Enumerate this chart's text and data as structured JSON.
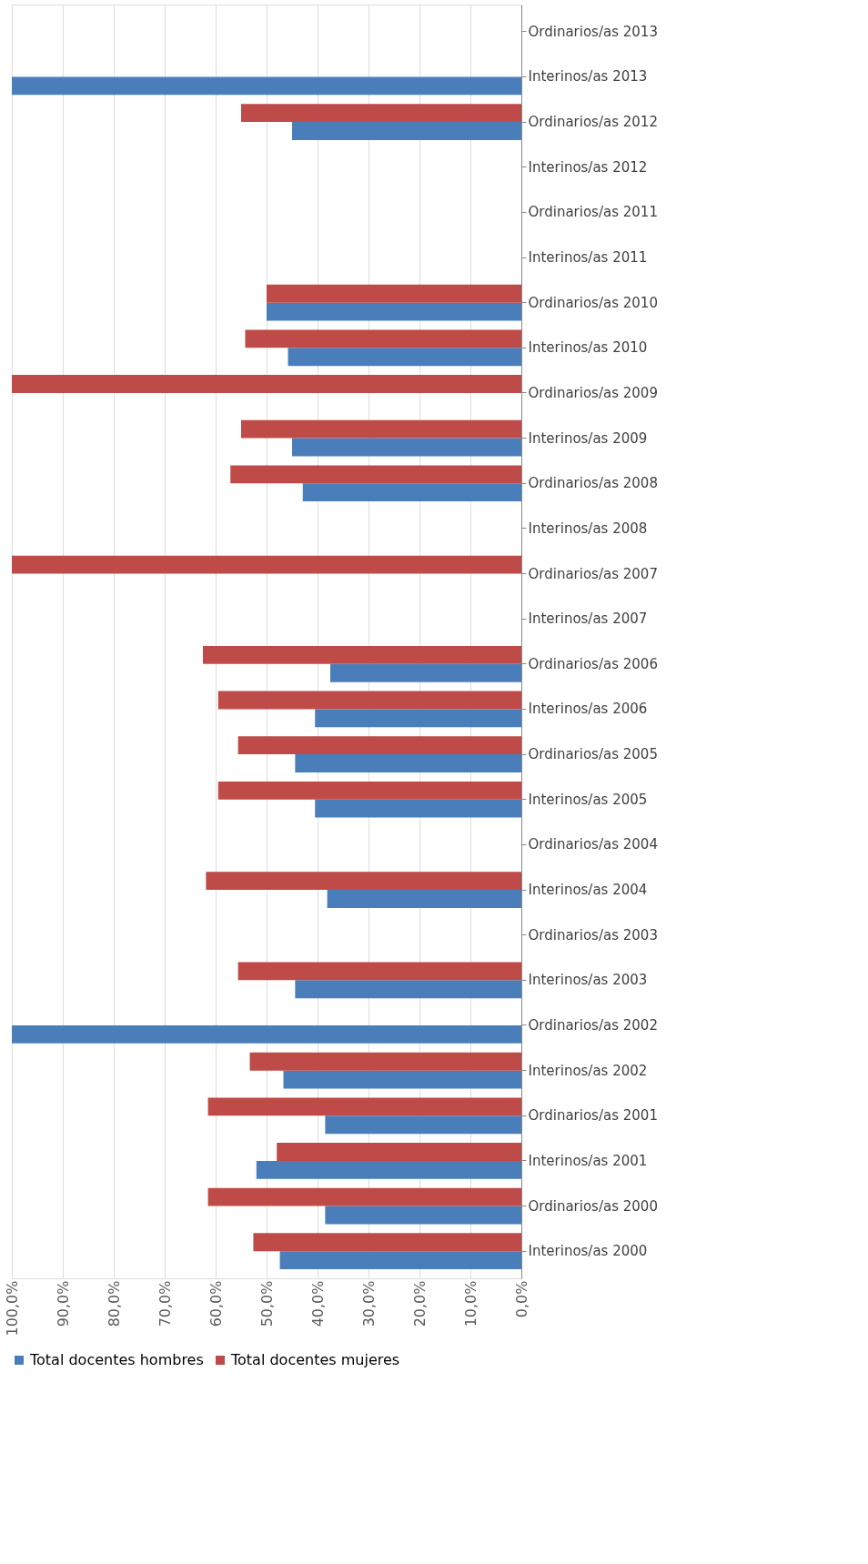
{
  "chart_data": {
    "type": "bar",
    "orientation": "horizontal",
    "categories": [
      "Ordinarios/as 2013",
      "Interinos/as 2013",
      "Ordinarios/as 2012",
      "Interinos/as 2012",
      "Ordinarios/as 2011",
      "Interinos/as 2011",
      "Ordinarios/as 2010",
      "Interinos/as 2010",
      "Ordinarios/as 2009",
      "Interinos/as 2009",
      "Ordinarios/as 2008",
      "Interinos/as 2008",
      "Ordinarios/as 2007",
      "Interinos/as 2007",
      "Ordinarios/as 2006",
      "Interinos/as 2006",
      "Ordinarios/as 2005",
      "Interinos/as 2005",
      "Ordinarios/as 2004",
      "Interinos/as 2004",
      "Ordinarios/as 2003",
      "Interinos/as 2003",
      "Ordinarios/as 2002",
      "Interinos/as 2002",
      "Ordinarios/as 2001",
      "Interinos/as 2001",
      "Ordinarios/as 2000",
      "Interinos/as 2000"
    ],
    "series": [
      {
        "name": "Total docentes hombres",
        "color": "#4a7ebb",
        "values": [
          null,
          100,
          45,
          null,
          null,
          null,
          50,
          45.8,
          null,
          45,
          42.9,
          null,
          null,
          null,
          37.5,
          40.5,
          44.4,
          40.5,
          null,
          38.1,
          null,
          44.4,
          100,
          46.7,
          38.5,
          52,
          38.5,
          47.4
        ]
      },
      {
        "name": "Total docentes mujeres",
        "color": "#be4b48",
        "values": [
          null,
          null,
          55,
          null,
          null,
          null,
          50,
          54.2,
          100,
          55,
          57.1,
          null,
          100,
          null,
          62.5,
          59.5,
          55.6,
          59.5,
          null,
          61.9,
          null,
          55.6,
          null,
          53.3,
          61.5,
          48,
          61.5,
          52.6
        ]
      }
    ],
    "xlim": [
      100,
      0
    ],
    "xticks": [
      {
        "value": 100,
        "label": "100,0%"
      },
      {
        "value": 90,
        "label": "90,0%"
      },
      {
        "value": 80,
        "label": "80,0%"
      },
      {
        "value": 70,
        "label": "70,0%"
      },
      {
        "value": 60,
        "label": "60,0%"
      },
      {
        "value": 50,
        "label": "50,0%"
      },
      {
        "value": 40,
        "label": "40,0%"
      },
      {
        "value": 30,
        "label": "30,0%"
      },
      {
        "value": 20,
        "label": "20,0%"
      },
      {
        "value": 10,
        "label": "10,0%"
      },
      {
        "value": 0,
        "label": "0,0%"
      }
    ],
    "grid": "x",
    "legend": "bottom"
  }
}
